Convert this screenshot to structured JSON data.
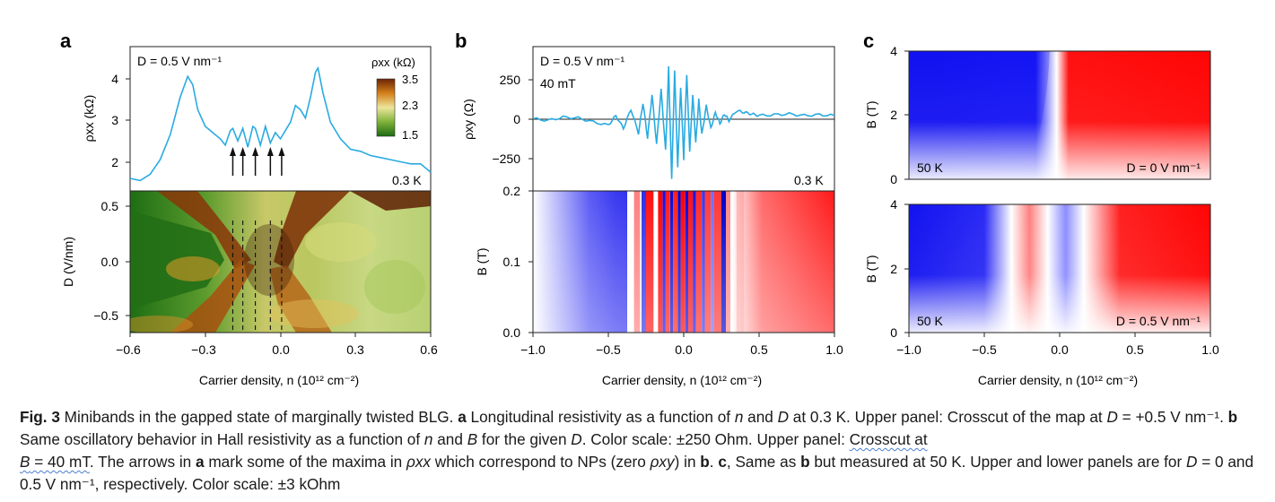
{
  "figure": {
    "panel_labels": [
      "a",
      "b",
      "c"
    ],
    "xlabel": "Carrier density, n (10¹² cm⁻²)",
    "a": {
      "top_annotation": "D = 0.5 V nm⁻¹",
      "temperature": "0.3 K",
      "ylabel_top": "ρxx (kΩ)",
      "ylabel_map": "D (V/nm)",
      "colorbar_title": "ρxx (kΩ)",
      "colorbar_ticks": [
        "3.5",
        "2.3",
        "1.5"
      ],
      "colorbar_colors": [
        "#7a2b07",
        "#e8e29a",
        "#1b6b12"
      ],
      "x_ticks": [
        "−0.6",
        "−0.3",
        "0.0",
        "0.3",
        "0.6"
      ],
      "y_ticks_top": [
        "4",
        "3",
        "2"
      ],
      "y_ticks_map": [
        "0.5",
        "0.0",
        "−0.5"
      ],
      "arrow_positions_n": [
        -0.19,
        -0.15,
        -0.1,
        -0.04,
        0.005
      ]
    },
    "b": {
      "top_annotation": "D = 0.5 V nm⁻¹",
      "field": "40 mT",
      "temperature": "0.3 K",
      "ylabel_top": "ρxy (Ω)",
      "ylabel_map": "B (T)",
      "x_ticks": [
        "−1.0",
        "−0.5",
        "0.0",
        "0.5",
        "1.0"
      ],
      "y_ticks_top": [
        "250",
        "0",
        "−250"
      ],
      "y_ticks_map": [
        "0.2",
        "0.1",
        "0.0"
      ]
    },
    "c": {
      "upper": {
        "temperature": "50 K",
        "annotation": "D = 0 V nm⁻¹"
      },
      "lower": {
        "temperature": "50 K",
        "annotation": "D = 0.5 V nm⁻¹"
      },
      "ylabel": "B (T)",
      "y_ticks": [
        "4",
        "2",
        "0"
      ],
      "x_ticks": [
        "−1.0",
        "−0.5",
        "0.0",
        "0.5",
        "1.0"
      ]
    },
    "colors": {
      "curve": "#29abe2",
      "red": "#ff0000",
      "blue": "#0000e6"
    }
  },
  "chart_data": [
    {
      "type": "line",
      "panel": "a-top",
      "xlabel": "Carrier density, n (10¹² cm⁻²)",
      "ylabel": "ρxx (kΩ)",
      "xlim": [
        -0.6,
        0.6
      ],
      "ylim": [
        1.5,
        4.6
      ],
      "x": [
        -0.6,
        -0.56,
        -0.52,
        -0.48,
        -0.44,
        -0.4,
        -0.37,
        -0.35,
        -0.33,
        -0.3,
        -0.27,
        -0.24,
        -0.22,
        -0.2,
        -0.19,
        -0.17,
        -0.15,
        -0.13,
        -0.11,
        -0.1,
        -0.08,
        -0.06,
        -0.04,
        -0.02,
        0.0,
        0.02,
        0.04,
        0.06,
        0.08,
        0.1,
        0.12,
        0.14,
        0.15,
        0.17,
        0.2,
        0.24,
        0.28,
        0.32,
        0.36,
        0.4,
        0.44,
        0.48,
        0.52,
        0.56,
        0.6
      ],
      "y": [
        1.65,
        1.6,
        1.75,
        2.1,
        2.7,
        3.6,
        4.1,
        3.9,
        3.3,
        2.9,
        2.75,
        2.6,
        2.45,
        2.8,
        2.85,
        2.55,
        2.85,
        2.4,
        2.9,
        2.85,
        2.45,
        2.9,
        2.5,
        2.75,
        2.6,
        2.8,
        3.0,
        3.4,
        3.3,
        3.1,
        3.6,
        4.2,
        4.3,
        3.7,
        3.0,
        2.6,
        2.35,
        2.3,
        2.2,
        2.15,
        2.1,
        2.05,
        2.0,
        2.0,
        1.8
      ]
    },
    {
      "type": "line",
      "panel": "b-top",
      "xlabel": "Carrier density, n (10¹² cm⁻²)",
      "ylabel": "ρxy (Ω)",
      "xlim": [
        -1.0,
        1.0
      ],
      "ylim": [
        -450,
        450
      ],
      "x": [
        -1.0,
        -0.9,
        -0.8,
        -0.7,
        -0.6,
        -0.5,
        -0.45,
        -0.4,
        -0.35,
        -0.3,
        -0.27,
        -0.24,
        -0.21,
        -0.18,
        -0.15,
        -0.12,
        -0.1,
        -0.08,
        -0.06,
        -0.04,
        -0.02,
        0.0,
        0.02,
        0.04,
        0.06,
        0.08,
        0.1,
        0.12,
        0.15,
        0.18,
        0.21,
        0.24,
        0.27,
        0.3,
        0.35,
        0.4,
        0.45,
        0.5,
        0.6,
        0.7,
        0.8,
        0.9,
        1.0
      ],
      "y": [
        0,
        -10,
        10,
        5,
        -20,
        -40,
        20,
        -60,
        60,
        -90,
        100,
        -120,
        150,
        -160,
        180,
        -200,
        320,
        -380,
        300,
        -300,
        200,
        -250,
        280,
        -200,
        150,
        -150,
        120,
        -100,
        80,
        -60,
        40,
        -30,
        30,
        -10,
        50,
        40,
        30,
        20,
        25,
        30,
        20,
        25,
        20
      ]
    },
    {
      "type": "heatmap",
      "panel": "a-map",
      "xlabel": "Carrier density, n (10¹² cm⁻²)",
      "ylabel": "D (V/nm)",
      "xlim": [
        -0.6,
        0.6
      ],
      "ylim": [
        -0.7,
        0.7
      ],
      "colorbar": {
        "label": "ρxx (kΩ)",
        "range": [
          1.5,
          3.5
        ]
      }
    },
    {
      "type": "heatmap",
      "panel": "b-map",
      "xlabel": "Carrier density, n (10¹² cm⁻²)",
      "ylabel": "B (T)",
      "xlim": [
        -1.0,
        1.0
      ],
      "ylim": [
        0.0,
        0.2
      ],
      "color_scale": "±250 Ohm"
    },
    {
      "type": "heatmap",
      "panel": "c-upper",
      "xlabel": "Carrier density, n (10¹² cm⁻²)",
      "ylabel": "B (T)",
      "xlim": [
        -1.0,
        1.0
      ],
      "ylim": [
        0,
        4
      ],
      "color_scale": "±3 kOhm"
    },
    {
      "type": "heatmap",
      "panel": "c-lower",
      "xlabel": "Carrier density, n (10¹² cm⁻²)",
      "ylabel": "B (T)",
      "xlim": [
        -1.0,
        1.0
      ],
      "ylim": [
        0,
        4
      ],
      "color_scale": "±3 kOhm"
    }
  ],
  "caption": {
    "fig_label": "Fig. 3",
    "title": " Minibands in the gapped state of marginally twisted BLG. ",
    "a_label": "a",
    "a_text1": " Longitudinal resistivity as a function of ",
    "n": "n",
    "and": " and ",
    "D": "D",
    "a_text2": " at 0.3 K. Upper panel: Crosscut of the map at ",
    "D2": "D",
    "a_text3": " = +0.5 V nm⁻¹. ",
    "b_label": "b",
    "b_text1": " Same oscillatory behavior in Hall resistivity as a function of ",
    "n2": "n",
    "and2": " and ",
    "B": "B",
    "b_text2": " for the given ",
    "D3": "D",
    "b_text3": ". Color scale: ±250 Ohm. Upper panel: ",
    "crosscut": "Crosscut at",
    "B2": "B",
    "b_text4": " = 40 mT",
    "b_text5": ". The arrows in ",
    "a_label2": "a",
    "b_text6": " mark some of the maxima in ",
    "rho_xx": "ρxx",
    "b_text7": " which correspond to NPs (zero ",
    "rho_xy": "ρxy",
    "b_text8": ") in ",
    "b_label2": "b",
    "b_text9": ". ",
    "c_label": "c",
    "c_text1": ", Same as ",
    "b_label3": "b",
    "c_text2": " but measured at 50 K. Upper and lower panels are for ",
    "D4": "D",
    "c_text3": " = 0  and 0.5 V nm⁻¹, respectively. Color scale: ±3 kOhm"
  }
}
